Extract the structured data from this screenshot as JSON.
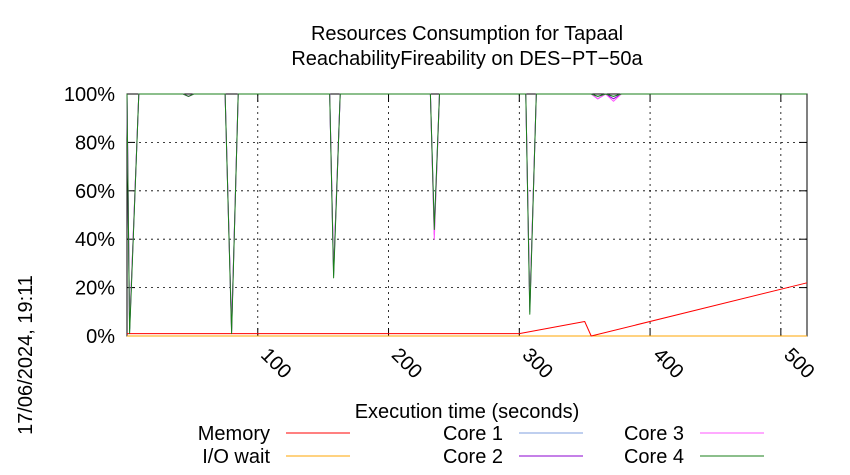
{
  "chart_data": {
    "type": "line",
    "title": "Resources Consumption for Tapaal",
    "subtitle": "ReachabilityFireability on DES−PT−50a",
    "xlabel": "Execution time (seconds)",
    "ylabel": "",
    "side_label": "17/06/2024, 19:11",
    "xlim": [
      0,
      520
    ],
    "ylim": [
      0,
      100
    ],
    "x_ticks": [
      100,
      200,
      300,
      400,
      500
    ],
    "y_ticks": [
      {
        "value": 0,
        "label": "0%"
      },
      {
        "value": 20,
        "label": "20%"
      },
      {
        "value": 40,
        "label": "40%"
      },
      {
        "value": 60,
        "label": "60%"
      },
      {
        "value": 80,
        "label": "80%"
      },
      {
        "value": 100,
        "label": "100%"
      }
    ],
    "grid": true,
    "legend_position": "bottom",
    "series": [
      {
        "name": "Memory",
        "color": "#ff0000",
        "points": [
          [
            0,
            1
          ],
          [
            300,
            1
          ],
          [
            350,
            6
          ],
          [
            355,
            0
          ],
          [
            520,
            22
          ]
        ]
      },
      {
        "name": "I/O wait",
        "color": "#ffa500",
        "points": [
          [
            0,
            0
          ],
          [
            520,
            0
          ]
        ]
      },
      {
        "name": "Core 1",
        "color": "#7f9fdf",
        "points": [
          [
            0,
            100
          ],
          [
            2,
            2
          ],
          [
            9,
            100
          ],
          [
            43,
            100
          ],
          [
            47,
            99
          ],
          [
            51,
            100
          ],
          [
            75,
            100
          ],
          [
            80,
            2
          ],
          [
            85,
            100
          ],
          [
            155,
            100
          ],
          [
            158,
            25
          ],
          [
            163,
            100
          ],
          [
            232,
            100
          ],
          [
            235,
            45
          ],
          [
            239,
            100
          ],
          [
            305,
            100
          ],
          [
            308,
            10
          ],
          [
            313,
            100
          ],
          [
            355,
            100
          ],
          [
            360,
            99
          ],
          [
            366,
            100
          ],
          [
            372,
            99
          ],
          [
            378,
            100
          ],
          [
            520,
            100
          ]
        ]
      },
      {
        "name": "Core 2",
        "color": "#8b00d1",
        "points": [
          [
            0,
            100
          ],
          [
            2,
            3
          ],
          [
            9,
            100
          ],
          [
            43,
            100
          ],
          [
            47,
            99
          ],
          [
            51,
            100
          ],
          [
            75,
            100
          ],
          [
            80,
            3
          ],
          [
            85,
            100
          ],
          [
            155,
            100
          ],
          [
            158,
            27
          ],
          [
            163,
            100
          ],
          [
            232,
            100
          ],
          [
            235,
            42
          ],
          [
            239,
            100
          ],
          [
            305,
            100
          ],
          [
            308,
            12
          ],
          [
            313,
            100
          ],
          [
            355,
            100
          ],
          [
            360,
            98
          ],
          [
            366,
            100
          ],
          [
            372,
            98
          ],
          [
            378,
            100
          ],
          [
            520,
            100
          ]
        ]
      },
      {
        "name": "Core 3",
        "color": "#ff55ff",
        "points": [
          [
            0,
            100
          ],
          [
            2,
            4
          ],
          [
            9,
            100
          ],
          [
            43,
            100
          ],
          [
            47,
            99
          ],
          [
            51,
            100
          ],
          [
            75,
            100
          ],
          [
            80,
            2
          ],
          [
            85,
            100
          ],
          [
            155,
            100
          ],
          [
            158,
            26
          ],
          [
            163,
            100
          ],
          [
            232,
            100
          ],
          [
            235,
            40
          ],
          [
            239,
            100
          ],
          [
            305,
            100
          ],
          [
            308,
            11
          ],
          [
            313,
            100
          ],
          [
            355,
            100
          ],
          [
            360,
            98
          ],
          [
            366,
            100
          ],
          [
            372,
            97
          ],
          [
            378,
            100
          ],
          [
            520,
            100
          ]
        ]
      },
      {
        "name": "Core 4",
        "color": "#1a7f1a",
        "points": [
          [
            0,
            100
          ],
          [
            2,
            1
          ],
          [
            9,
            100
          ],
          [
            43,
            100
          ],
          [
            47,
            99
          ],
          [
            51,
            100
          ],
          [
            75,
            100
          ],
          [
            80,
            1
          ],
          [
            85,
            100
          ],
          [
            155,
            100
          ],
          [
            158,
            24
          ],
          [
            163,
            100
          ],
          [
            232,
            100
          ],
          [
            235,
            44
          ],
          [
            239,
            100
          ],
          [
            305,
            100
          ],
          [
            308,
            9
          ],
          [
            313,
            100
          ],
          [
            355,
            100
          ],
          [
            360,
            99
          ],
          [
            366,
            100
          ],
          [
            372,
            99
          ],
          [
            378,
            100
          ],
          [
            520,
            100
          ]
        ]
      }
    ]
  }
}
